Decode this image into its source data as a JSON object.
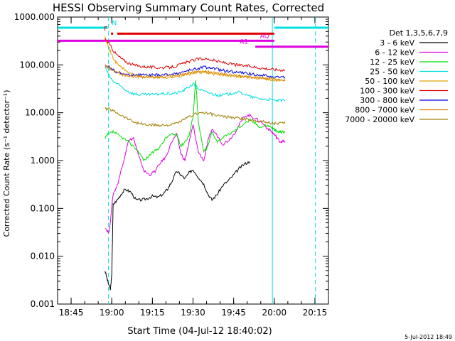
{
  "chart_data": {
    "type": "line",
    "title": "HESSI Observing Summary Count Rates, Corrected",
    "xlabel": "Start Time (04-Jul-12 18:40:02)",
    "ylabel": "Corrected Count Rate (s⁻¹ detector⁻¹)",
    "footer_text": "5-Jul-2012 18:49",
    "y_scale": "log",
    "ylim": [
      0.001,
      1000
    ],
    "x_units": "minutes after 18:40:02",
    "xlim": [
      0,
      100
    ],
    "x_ticks": [
      {
        "value": 5,
        "label": "18:45"
      },
      {
        "value": 20,
        "label": "19:00"
      },
      {
        "value": 35,
        "label": "19:15"
      },
      {
        "value": 50,
        "label": "19:30"
      },
      {
        "value": 65,
        "label": "19:45"
      },
      {
        "value": 80,
        "label": "20:00"
      },
      {
        "value": 95,
        "label": "20:15"
      }
    ],
    "y_ticks": [
      {
        "value": 1000,
        "label": "1000.000"
      },
      {
        "value": 100,
        "label": "100.000"
      },
      {
        "value": 10,
        "label": "10.000"
      },
      {
        "value": 1,
        "label": "1.000"
      },
      {
        "value": 0.1,
        "label": "0.100"
      },
      {
        "value": 0.01,
        "label": "0.010"
      },
      {
        "value": 0.001,
        "label": "0.001"
      }
    ],
    "legend_title": "Det 1,3,5,6,7,9",
    "legend_placement": "right",
    "series": [
      {
        "name": "3 - 6 keV",
        "color": "#000000",
        "x": [
          17.5,
          18.5,
          19.5,
          20,
          20.5,
          22,
          23.5,
          25,
          27,
          29,
          31,
          33,
          35,
          37,
          39,
          40.5,
          42,
          44,
          45.5,
          47,
          48.5,
          50,
          52,
          54,
          55.5,
          57,
          59,
          61,
          63,
          65,
          67,
          69,
          71
        ],
        "y": [
          0.005,
          0.003,
          0.002,
          0.004,
          0.12,
          0.15,
          0.2,
          0.25,
          0.22,
          0.15,
          0.15,
          0.16,
          0.18,
          0.17,
          0.2,
          0.25,
          0.35,
          0.6,
          0.5,
          0.42,
          0.55,
          0.65,
          0.45,
          0.32,
          0.2,
          0.15,
          0.2,
          0.3,
          0.38,
          0.5,
          0.68,
          0.85,
          0.95
        ]
      },
      {
        "name": "6 - 12 keV",
        "color": "#e000e0",
        "x": [
          17.5,
          19,
          20.5,
          22,
          24,
          26,
          28,
          30,
          32,
          34,
          36,
          38,
          40,
          42,
          44,
          45.5,
          47,
          48.5,
          50,
          52,
          54,
          55.5,
          57,
          59,
          61,
          63,
          65,
          67,
          69,
          71,
          73,
          75,
          77,
          79,
          80,
          81,
          82,
          83,
          84
        ],
        "y": [
          0.04,
          0.03,
          0.2,
          0.3,
          0.8,
          2.5,
          3,
          1.2,
          0.6,
          0.5,
          0.6,
          0.9,
          1.2,
          2.4,
          3.5,
          1.4,
          1.0,
          2.3,
          5.5,
          1.5,
          1.0,
          2.5,
          4.5,
          3.3,
          2.2,
          2.6,
          3.5,
          5.5,
          8.5,
          8.8,
          7.5,
          6.5,
          5.0,
          4.0,
          3.5,
          3.0,
          2.5,
          2.5,
          2.5
        ]
      },
      {
        "name": "12 - 25 keV",
        "color": "#00e000",
        "x": [
          17.5,
          18.5,
          20.5,
          22,
          24,
          26,
          28,
          30,
          32,
          34,
          36,
          38,
          40,
          42,
          44,
          45.5,
          47,
          48.5,
          50,
          51,
          52,
          54,
          55.5,
          57,
          59,
          61,
          63,
          65,
          67,
          69,
          71,
          73,
          75,
          77,
          79,
          80,
          81,
          82,
          83,
          84
        ],
        "y": [
          2.8,
          3.5,
          4.0,
          3.5,
          3.0,
          2.5,
          2.0,
          1.5,
          1.0,
          1.3,
          1.6,
          2.0,
          3.0,
          3.5,
          3.5,
          2.0,
          2.5,
          3.3,
          8.0,
          50,
          6.0,
          1.5,
          2.0,
          4.0,
          2.5,
          3.0,
          3.5,
          4.0,
          5.0,
          6.0,
          7.0,
          6.0,
          5.0,
          5.5,
          5.0,
          4.5,
          4.0,
          4.0,
          4.0,
          4.0
        ]
      },
      {
        "name": "25 - 50 keV",
        "color": "#00e0e0",
        "x": [
          17.5,
          19,
          20.5,
          22,
          24,
          26,
          28,
          30,
          32,
          34,
          36,
          38,
          40,
          42,
          44,
          46,
          48,
          50,
          52,
          54,
          56,
          58,
          60,
          62,
          64,
          66,
          68,
          70,
          72,
          74,
          76,
          78,
          80,
          82,
          84
        ],
        "y": [
          90,
          60,
          45,
          40,
          33,
          28,
          25,
          24,
          24,
          24,
          24,
          25,
          25,
          25,
          26,
          28,
          33,
          40,
          32,
          28,
          26,
          24,
          23,
          24,
          25,
          27,
          26,
          23,
          21,
          20,
          19,
          19,
          18,
          18,
          18
        ]
      },
      {
        "name": "50 - 100 keV",
        "color": "#e0a000",
        "x": [
          17.5,
          19,
          20.5,
          22,
          24,
          26,
          28,
          30,
          32,
          34,
          36,
          38,
          40,
          42,
          44,
          46,
          48,
          50,
          52,
          54,
          56,
          58,
          60,
          62,
          64,
          66,
          68,
          70,
          72,
          74,
          76,
          78,
          80,
          82,
          84
        ],
        "y": [
          420,
          220,
          140,
          105,
          85,
          70,
          63,
          58,
          56,
          55,
          55,
          55,
          55,
          55,
          57,
          60,
          63,
          67,
          70,
          70,
          68,
          64,
          62,
          62,
          60,
          59,
          57,
          56,
          54,
          53,
          52,
          50,
          49,
          48,
          47
        ]
      },
      {
        "name": "100 - 300 keV",
        "color": "#e00000",
        "x": [
          17.5,
          19,
          20.5,
          22,
          24,
          26,
          28,
          30,
          32,
          34,
          36,
          38,
          40,
          42,
          44,
          46,
          48,
          50,
          52,
          54,
          56,
          58,
          60,
          62,
          64,
          66,
          68,
          70,
          72,
          74,
          76,
          78,
          80,
          82,
          84
        ],
        "y": [
          350,
          280,
          200,
          160,
          130,
          110,
          100,
          95,
          92,
          90,
          88,
          88,
          88,
          90,
          95,
          105,
          115,
          125,
          133,
          135,
          130,
          122,
          115,
          110,
          105,
          100,
          97,
          95,
          92,
          88,
          85,
          83,
          80,
          79,
          78
        ]
      },
      {
        "name": "300 - 800 keV",
        "color": "#0000e0",
        "x": [
          17.5,
          19,
          20.5,
          22,
          24,
          26,
          28,
          30,
          32,
          34,
          36,
          38,
          40,
          42,
          44,
          46,
          48,
          50,
          52,
          54,
          56,
          58,
          60,
          62,
          64,
          66,
          68,
          70,
          72,
          74,
          76,
          78,
          80,
          82,
          84
        ],
        "y": [
          100,
          90,
          78,
          70,
          65,
          62,
          62,
          62,
          61,
          61,
          61,
          62,
          62,
          63,
          66,
          70,
          75,
          80,
          85,
          90,
          88,
          83,
          78,
          75,
          73,
          70,
          68,
          66,
          64,
          62,
          60,
          58,
          56,
          55,
          55
        ]
      },
      {
        "name": "800 - 7000 keV",
        "color": "#e08000",
        "x": [
          17.5,
          19,
          20.5,
          22,
          24,
          26,
          28,
          30,
          32,
          34,
          36,
          38,
          40,
          42,
          44,
          46,
          48,
          50,
          52,
          54,
          56,
          58,
          60,
          62,
          64,
          66,
          68,
          70,
          72,
          74,
          76,
          78,
          80,
          82,
          84
        ],
        "y": [
          95,
          85,
          75,
          70,
          63,
          60,
          58,
          57,
          56,
          56,
          56,
          56,
          57,
          58,
          60,
          63,
          66,
          70,
          72,
          73,
          71,
          68,
          65,
          63,
          61,
          59,
          57,
          56,
          55,
          53,
          52,
          51,
          50,
          50,
          50
        ]
      },
      {
        "name": "7000 - 20000 keV",
        "color": "#a08000",
        "x": [
          17.5,
          19,
          20.5,
          22,
          24,
          26,
          28,
          30,
          32,
          34,
          36,
          38,
          40,
          42,
          44,
          46,
          48,
          50,
          52,
          54,
          56,
          58,
          60,
          62,
          64,
          66,
          68,
          70,
          72,
          74,
          76,
          78,
          80,
          82,
          84
        ],
        "y": [
          12,
          12,
          11,
          10,
          8.5,
          7.5,
          6.5,
          6.0,
          5.7,
          5.5,
          5.5,
          5.5,
          5.5,
          5.6,
          6,
          6.8,
          7.8,
          9,
          10,
          10,
          9.5,
          9,
          8.5,
          8.2,
          8,
          7.8,
          7.5,
          7.2,
          7,
          6.8,
          6.5,
          6.2,
          6,
          6,
          6
        ]
      }
    ],
    "bands": [
      {
        "label": "N",
        "color": "#00e0e0",
        "x_start": 0,
        "x_end": 18.5,
        "y": 600,
        "gap_x": [
          20.5,
          80
        ],
        "x_start2": 80,
        "x_end2": 100
      },
      {
        "label": "F",
        "color": "#e00000",
        "x_start": 19.7,
        "x_end": 20.5,
        "y": 450,
        "x_start2": 22,
        "x_end2": 80
      },
      {
        "label": "AQ",
        "color": "#e000e0",
        "x_start": 0,
        "x_end": 80,
        "y": 320
      },
      {
        "label": "A1",
        "color": "#e000e0",
        "x_start": 73,
        "x_end": 100,
        "y": 240
      }
    ],
    "vertical_markers": [
      {
        "x": 18.8,
        "style": "dashed",
        "color": "#00e0e0"
      },
      {
        "x": 79.3,
        "style": "solid",
        "color": "#00e0e0"
      },
      {
        "x": 95.2,
        "style": "dashed",
        "color": "#00e0e0"
      }
    ]
  }
}
